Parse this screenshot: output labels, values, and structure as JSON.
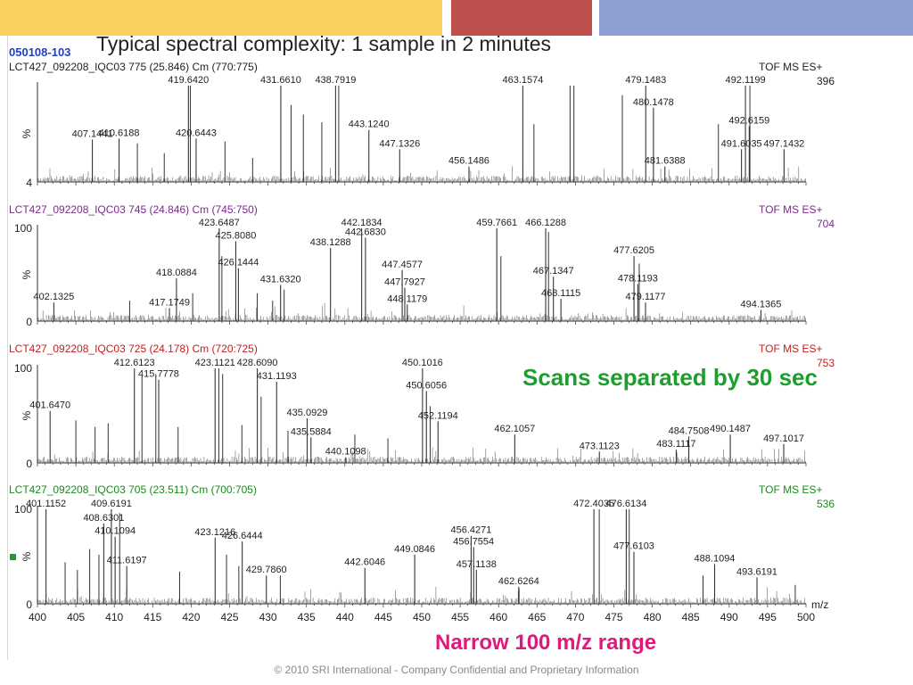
{
  "slide": {
    "tag": "050108-103",
    "title": "Typical spectral complexity: 1 sample in 2 minutes",
    "note_scans": "Scans separated by 30 sec",
    "note_range": "Narrow 100 m/z range",
    "footer": "© 2010 SRI International - Company Confidential and Proprietary Information"
  },
  "colors": {
    "bar_yellow": "#f8d060",
    "bar_red": "#c0504d",
    "bar_blue": "#8d9ed0",
    "scan_title_1": "#222222",
    "scan_title_2": "#7a2a8a",
    "scan_title_3": "#c02020",
    "scan_title_4": "#1a8a1a",
    "trace": "#333333",
    "note_green": "#1e9e2e",
    "note_pink": "#e0197a"
  },
  "chart_data": {
    "type": "line",
    "xlabel": "m/z",
    "xlim": [
      400,
      500
    ],
    "xticks": [
      400,
      405,
      410,
      415,
      420,
      425,
      430,
      435,
      440,
      445,
      450,
      455,
      460,
      465,
      470,
      475,
      480,
      485,
      490,
      495,
      500
    ],
    "panels": [
      {
        "title": "LCT427_092208_IQC03 775 (25.846) Cm (770:775)",
        "mode": "TOF MS ES+",
        "intensity": "396",
        "ylabel": "%",
        "yticks": [
          "4"
        ],
        "ylim": [
          0,
          100
        ],
        "peaks": [
          {
            "mz": 407.1441,
            "y": 44,
            "label": "407.1441"
          },
          {
            "mz": 410.6188,
            "y": 45,
            "label": "410.6188"
          },
          {
            "mz": 419.642,
            "y": 100,
            "label": "419.6420"
          },
          {
            "mz": 420.6443,
            "y": 45,
            "label": "420.6443"
          },
          {
            "mz": 431.661,
            "y": 100,
            "label": "431.6610"
          },
          {
            "mz": 438.7919,
            "y": 100,
            "label": "438.7919"
          },
          {
            "mz": 443.124,
            "y": 54,
            "label": "443.1240"
          },
          {
            "mz": 447.1326,
            "y": 34,
            "label": "447.1326"
          },
          {
            "mz": 456.1486,
            "y": 16,
            "label": "456.1486"
          },
          {
            "mz": 463.1574,
            "y": 100,
            "label": "463.1574"
          },
          {
            "mz": 479.1483,
            "y": 100,
            "label": "479.1483"
          },
          {
            "mz": 480.1478,
            "y": 77,
            "label": "480.1478"
          },
          {
            "mz": 481.6388,
            "y": 16,
            "label": "481.6388"
          },
          {
            "mz": 491.6035,
            "y": 34,
            "label": "491.6035"
          },
          {
            "mz": 492.1199,
            "y": 100,
            "label": "492.1199"
          },
          {
            "mz": 492.6159,
            "y": 58,
            "label": "492.6159"
          },
          {
            "mz": 497.1432,
            "y": 34,
            "label": "497.1432"
          }
        ],
        "unlabeled": [
          {
            "mz": 413.0,
            "y": 40
          },
          {
            "mz": 416.5,
            "y": 30
          },
          {
            "mz": 419.9,
            "y": 100
          },
          {
            "mz": 424.4,
            "y": 42
          },
          {
            "mz": 428.0,
            "y": 25
          },
          {
            "mz": 433.0,
            "y": 80
          },
          {
            "mz": 434.6,
            "y": 70
          },
          {
            "mz": 437.0,
            "y": 62
          },
          {
            "mz": 439.2,
            "y": 100
          },
          {
            "mz": 464.6,
            "y": 60
          },
          {
            "mz": 469.3,
            "y": 100
          },
          {
            "mz": 469.8,
            "y": 100
          },
          {
            "mz": 476.1,
            "y": 90
          },
          {
            "mz": 488.6,
            "y": 60
          },
          {
            "mz": 492.7,
            "y": 100
          }
        ]
      },
      {
        "title": "LCT427_092208_IQC03 745 (24.846) Cm (745:750)",
        "mode": "TOF MS ES+",
        "intensity": "704",
        "ylabel": "%",
        "yticks": [
          "100",
          "0"
        ],
        "ylim": [
          0,
          100
        ],
        "peaks": [
          {
            "mz": 402.1325,
            "y": 20,
            "label": "402.1325"
          },
          {
            "mz": 417.1749,
            "y": 14,
            "label": "417.1749"
          },
          {
            "mz": 418.0884,
            "y": 46,
            "label": "418.0884"
          },
          {
            "mz": 423.6487,
            "y": 100,
            "label": "423.6487"
          },
          {
            "mz": 425.808,
            "y": 86,
            "label": "425.8080"
          },
          {
            "mz": 426.1444,
            "y": 57,
            "label": "426.1444"
          },
          {
            "mz": 431.632,
            "y": 39,
            "label": "431.6320"
          },
          {
            "mz": 438.1288,
            "y": 79,
            "label": "438.1288"
          },
          {
            "mz": 442.1834,
            "y": 100,
            "label": "442.1834"
          },
          {
            "mz": 442.683,
            "y": 90,
            "label": "442.6830"
          },
          {
            "mz": 447.4577,
            "y": 55,
            "label": "447.4577"
          },
          {
            "mz": 447.7927,
            "y": 36,
            "label": "447.7927"
          },
          {
            "mz": 448.1179,
            "y": 18,
            "label": "448.1179"
          },
          {
            "mz": 459.7661,
            "y": 100,
            "label": "459.7661"
          },
          {
            "mz": 466.1288,
            "y": 100,
            "label": "466.1288"
          },
          {
            "mz": 467.1347,
            "y": 48,
            "label": "467.1347"
          },
          {
            "mz": 468.1115,
            "y": 24,
            "label": "468.1115"
          },
          {
            "mz": 477.6205,
            "y": 70,
            "label": "477.6205"
          },
          {
            "mz": 478.1193,
            "y": 40,
            "label": "478.1193"
          },
          {
            "mz": 479.1177,
            "y": 20,
            "label": "479.1177"
          },
          {
            "mz": 494.1365,
            "y": 12,
            "label": "494.1365"
          }
        ],
        "unlabeled": [
          {
            "mz": 412.0,
            "y": 22
          },
          {
            "mz": 420.2,
            "y": 30
          },
          {
            "mz": 424.0,
            "y": 70
          },
          {
            "mz": 428.6,
            "y": 30
          },
          {
            "mz": 430.6,
            "y": 22
          },
          {
            "mz": 432.1,
            "y": 34
          },
          {
            "mz": 460.3,
            "y": 70
          },
          {
            "mz": 466.5,
            "y": 96
          },
          {
            "mz": 478.3,
            "y": 62
          }
        ]
      },
      {
        "title": "LCT427_092208_IQC03 725 (24.178) Cm (720:725)",
        "mode": "TOF MS ES+",
        "intensity": "753",
        "ylabel": "%",
        "yticks": [
          "100",
          "0"
        ],
        "ylim": [
          0,
          100
        ],
        "peaks": [
          {
            "mz": 401.647,
            "y": 55,
            "label": "401.6470"
          },
          {
            "mz": 412.6123,
            "y": 100,
            "label": "412.6123"
          },
          {
            "mz": 415.7778,
            "y": 88,
            "label": "415.7778"
          },
          {
            "mz": 423.1121,
            "y": 100,
            "label": "423.1121"
          },
          {
            "mz": 428.609,
            "y": 100,
            "label": "428.6090"
          },
          {
            "mz": 431.1193,
            "y": 86,
            "label": "431.1193"
          },
          {
            "mz": 435.0929,
            "y": 47,
            "label": "435.0929"
          },
          {
            "mz": 435.5884,
            "y": 27,
            "label": "435.5884"
          },
          {
            "mz": 440.1098,
            "y": 6,
            "label": "440.1098"
          },
          {
            "mz": 450.1016,
            "y": 100,
            "label": "450.1016"
          },
          {
            "mz": 450.6056,
            "y": 76,
            "label": "450.6056"
          },
          {
            "mz": 452.1194,
            "y": 44,
            "label": "452.1194"
          },
          {
            "mz": 462.1057,
            "y": 30,
            "label": "462.1057"
          },
          {
            "mz": 473.1123,
            "y": 12,
            "label": "473.1123"
          },
          {
            "mz": 483.1117,
            "y": 14,
            "label": "483.1117"
          },
          {
            "mz": 484.7508,
            "y": 28,
            "label": "484.7508"
          },
          {
            "mz": 490.1487,
            "y": 30,
            "label": "490.1487"
          },
          {
            "mz": 497.1017,
            "y": 20,
            "label": "497.1017"
          }
        ],
        "unlabeled": [
          {
            "mz": 405.0,
            "y": 45
          },
          {
            "mz": 407.5,
            "y": 38
          },
          {
            "mz": 409.2,
            "y": 42
          },
          {
            "mz": 413.6,
            "y": 92
          },
          {
            "mz": 415.4,
            "y": 94
          },
          {
            "mz": 418.3,
            "y": 38
          },
          {
            "mz": 423.6,
            "y": 100
          },
          {
            "mz": 424.1,
            "y": 94
          },
          {
            "mz": 426.6,
            "y": 40
          },
          {
            "mz": 429.1,
            "y": 70
          },
          {
            "mz": 432.6,
            "y": 34
          },
          {
            "mz": 441.3,
            "y": 30
          },
          {
            "mz": 445.6,
            "y": 26
          },
          {
            "mz": 451.1,
            "y": 60
          }
        ]
      },
      {
        "title": "LCT427_092208_IQC03 705 (23.511) Cm (700:705)",
        "mode": "TOF MS ES+",
        "intensity": "536",
        "ylabel": "%",
        "yticks": [
          "100",
          "0"
        ],
        "ylim": [
          0,
          100
        ],
        "peaks": [
          {
            "mz": 401.1152,
            "y": 100,
            "label": "401.1152"
          },
          {
            "mz": 408.6301,
            "y": 85,
            "label": "408.6301"
          },
          {
            "mz": 409.6191,
            "y": 100,
            "label": "409.6191"
          },
          {
            "mz": 410.1094,
            "y": 71,
            "label": "410.1094"
          },
          {
            "mz": 411.6197,
            "y": 40,
            "label": "411.6197"
          },
          {
            "mz": 423.1216,
            "y": 70,
            "label": "423.1216"
          },
          {
            "mz": 426.6444,
            "y": 66,
            "label": "426.6444"
          },
          {
            "mz": 429.786,
            "y": 30,
            "label": "429.7860"
          },
          {
            "mz": 442.6046,
            "y": 38,
            "label": "442.6046"
          },
          {
            "mz": 449.0846,
            "y": 52,
            "label": "449.0846"
          },
          {
            "mz": 456.4271,
            "y": 72,
            "label": "456.4271"
          },
          {
            "mz": 456.7554,
            "y": 60,
            "label": "456.7554"
          },
          {
            "mz": 457.1138,
            "y": 36,
            "label": "457.1138"
          },
          {
            "mz": 462.6264,
            "y": 18,
            "label": "462.6264"
          },
          {
            "mz": 472.4035,
            "y": 100,
            "label": "472.4035"
          },
          {
            "mz": 476.6134,
            "y": 100,
            "label": "476.6134"
          },
          {
            "mz": 477.6103,
            "y": 55,
            "label": "477.6103"
          },
          {
            "mz": 488.1094,
            "y": 42,
            "label": "488.1094"
          },
          {
            "mz": 493.6191,
            "y": 28,
            "label": "493.6191"
          }
        ],
        "unlabeled": [
          {
            "mz": 403.6,
            "y": 44
          },
          {
            "mz": 405.2,
            "y": 36
          },
          {
            "mz": 406.8,
            "y": 58
          },
          {
            "mz": 408.0,
            "y": 52
          },
          {
            "mz": 410.7,
            "y": 96
          },
          {
            "mz": 418.5,
            "y": 34
          },
          {
            "mz": 424.6,
            "y": 52
          },
          {
            "mz": 426.2,
            "y": 40
          },
          {
            "mz": 431.6,
            "y": 30
          },
          {
            "mz": 473.1,
            "y": 100
          },
          {
            "mz": 477.0,
            "y": 100
          },
          {
            "mz": 486.6,
            "y": 30
          },
          {
            "mz": 498.6,
            "y": 20
          }
        ]
      }
    ]
  }
}
